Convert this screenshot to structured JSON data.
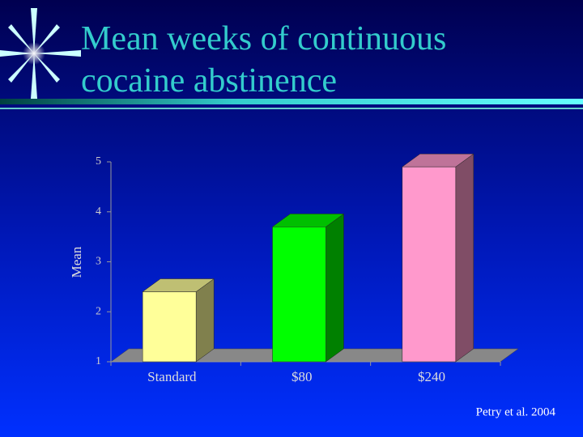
{
  "chart_data": {
    "type": "bar3d",
    "title": "Mean weeks of continuous cocaine abstinence",
    "ylabel": "Mean",
    "categories": [
      "Standard",
      "$80",
      "$240"
    ],
    "values": [
      2.4,
      3.7,
      4.9
    ],
    "colors": [
      "#ffff99",
      "#00ff00",
      "#ff99cc"
    ],
    "ylim": [
      1,
      5
    ],
    "yticks": [
      1,
      2,
      3,
      4,
      5
    ],
    "source": "Petry et al. 2004"
  }
}
